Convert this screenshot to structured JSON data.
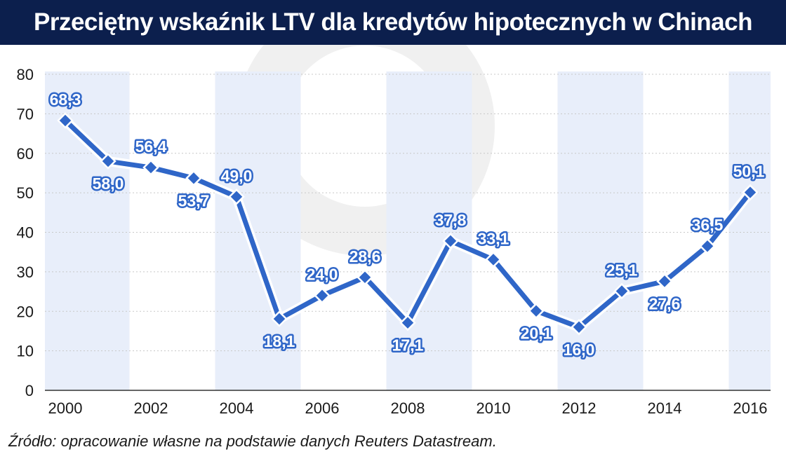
{
  "header": {
    "title": "Przeciętny wskaźnik LTV dla kredytów hipotecznych w Chinach"
  },
  "footer": {
    "source": "Źródło: opracowanie własne na podstawie danych Reuters Datastream."
  },
  "colors": {
    "title_bg": "#0c1f4d",
    "line": "#2f66c8",
    "marker_fill": "#2f66c8",
    "marker_stroke": "#ffffff",
    "band": "#e8eefa",
    "gridline": "#c8c8c8",
    "watermark": "#f0f0f0"
  },
  "chart_data": {
    "type": "line",
    "title": "Przeciętny wskaźnik LTV dla kredytów hipotecznych w Chinach",
    "xlabel": "",
    "ylabel": "",
    "x": [
      2000,
      2001,
      2002,
      2003,
      2004,
      2005,
      2006,
      2007,
      2008,
      2009,
      2010,
      2011,
      2012,
      2013,
      2014,
      2015,
      2016
    ],
    "values": [
      68.3,
      58.0,
      56.4,
      53.7,
      49.0,
      18.1,
      24.0,
      28.6,
      17.1,
      37.8,
      33.1,
      20.1,
      16.0,
      25.1,
      27.6,
      36.5,
      50.1
    ],
    "data_labels": [
      "68,3",
      "58,0",
      "56,4",
      "53,7",
      "49,0",
      "18,1",
      "24,0",
      "28,6",
      "17,1",
      "37,8",
      "33,1",
      "20,1",
      "16,0",
      "25,1",
      "27,6",
      "36,5",
      "50,1"
    ],
    "label_positions": [
      "above",
      "below",
      "above",
      "below",
      "above",
      "below",
      "above",
      "above",
      "below",
      "above",
      "above",
      "below",
      "below",
      "above",
      "below",
      "above",
      "above"
    ],
    "x_ticks": [
      "2000",
      "2002",
      "2004",
      "2006",
      "2008",
      "2010",
      "2012",
      "2014",
      "2016"
    ],
    "y_ticks": [
      "0",
      "10",
      "20",
      "30",
      "40",
      "50",
      "60",
      "70",
      "80"
    ],
    "ylim": [
      0,
      80
    ],
    "grid": true,
    "shaded_bands": [
      [
        2000,
        2001
      ],
      [
        2004,
        2005
      ],
      [
        2008,
        2009
      ],
      [
        2012,
        2013
      ],
      [
        2016,
        2016
      ]
    ]
  }
}
